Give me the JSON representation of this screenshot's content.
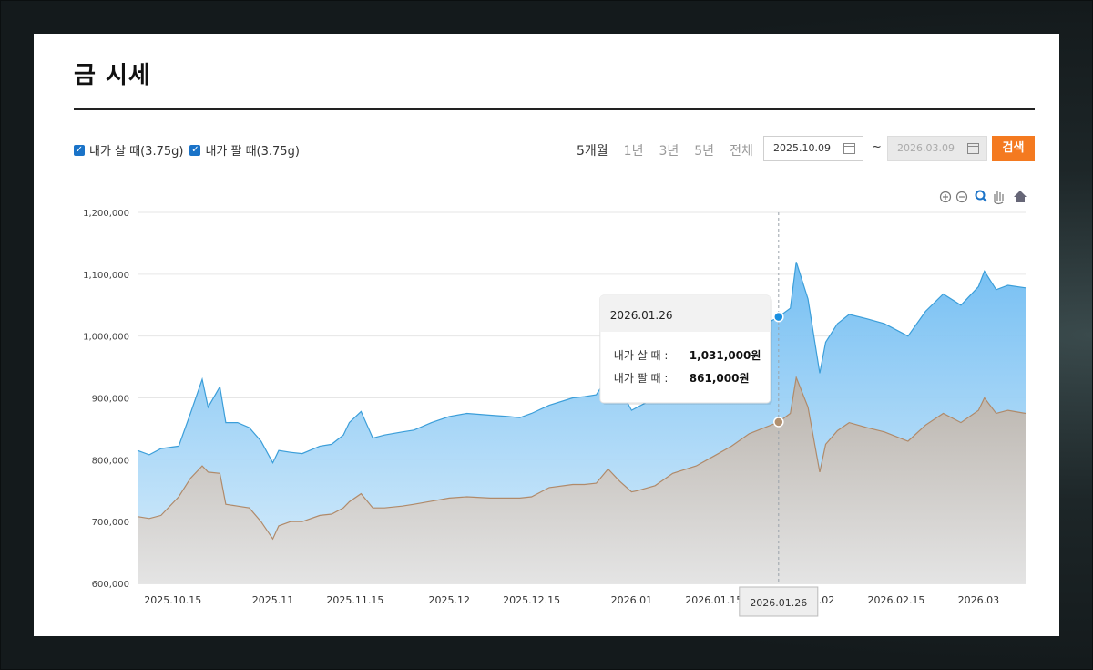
{
  "page": {
    "title": "금 시세",
    "checkbox_buy": "내가 살 때(3.75g)",
    "checkbox_sell": "내가 팔 때(3.75g)",
    "periods": [
      "5개월",
      "1년",
      "3년",
      "5년",
      "전체"
    ],
    "active_period": "5개월",
    "date_from": "2025.10.09",
    "date_tilde": "~",
    "date_to": "2026.03.09",
    "search_label": "검색",
    "accent_color": "#f47a20"
  },
  "chart_data": {
    "type": "area",
    "x_ticks": [
      "2025.10.15",
      "2025.11",
      "2025.11.15",
      "2025.12",
      "2025.12.15",
      "2026.01",
      "2026.01.15",
      "2026.02",
      "2026.02.15",
      "2026.03"
    ],
    "y_ticks": [
      "600,000",
      "700,000",
      "800,000",
      "900,000",
      "1,000,000",
      "1,100,000",
      "1,200,000"
    ],
    "ylim": [
      600000,
      1200000
    ],
    "xlim": [
      "2025.10.09",
      "2026.03.09"
    ],
    "series": [
      {
        "color": "#3b9ed9",
        "x": [
          "2025.10.09",
          "2025.10.11",
          "2025.10.13",
          "2025.10.16",
          "2025.10.18",
          "2025.10.20",
          "2025.10.21",
          "2025.10.23",
          "2025.10.24",
          "2025.10.26",
          "2025.10.28",
          "2025.10.30",
          "2025.11.01",
          "2025.11.02",
          "2025.11.04",
          "2025.11.06",
          "2025.11.09",
          "2025.11.11",
          "2025.11.13",
          "2025.11.14",
          "2025.11.16",
          "2025.11.18",
          "2025.11.20",
          "2025.11.23",
          "2025.11.25",
          "2025.11.28",
          "2025.12.01",
          "2025.12.04",
          "2025.12.08",
          "2025.12.11",
          "2025.12.13",
          "2025.12.15",
          "2025.12.18",
          "2025.12.22",
          "2025.12.24",
          "2025.12.26",
          "2025.12.28",
          "2025.12.30",
          "2026.01.01",
          "2026.01.02",
          "2026.01.05",
          "2026.01.08",
          "2026.01.12",
          "2026.01.15",
          "2026.01.18",
          "2026.01.21",
          "2026.01.26",
          "2026.01.28",
          "2026.01.29",
          "2026.01.31",
          "2026.02.02",
          "2026.02.03",
          "2026.02.05",
          "2026.02.07",
          "2026.02.10",
          "2026.02.13",
          "2026.02.17",
          "2026.02.20",
          "2026.02.23",
          "2026.02.26",
          "2026.03.01",
          "2026.03.02",
          "2026.03.04",
          "2026.03.06",
          "2026.03.09"
        ],
        "values": [
          815000,
          808000,
          818000,
          822000,
          875000,
          930000,
          885000,
          918000,
          860000,
          860000,
          852000,
          830000,
          795000,
          815000,
          812000,
          810000,
          822000,
          825000,
          840000,
          860000,
          878000,
          835000,
          840000,
          845000,
          848000,
          860000,
          870000,
          875000,
          872000,
          870000,
          868000,
          875000,
          888000,
          900000,
          902000,
          905000,
          935000,
          915000,
          880000,
          885000,
          900000,
          930000,
          945000,
          960000,
          985000,
          1005000,
          1031000,
          1045000,
          1120000,
          1060000,
          940000,
          990000,
          1020000,
          1035000,
          1028000,
          1020000,
          1000000,
          1040000,
          1068000,
          1050000,
          1080000,
          1105000,
          1075000,
          1082000,
          1078000
        ]
      },
      {
        "color": "#b08a6a",
        "x": [
          "2025.10.09",
          "2025.10.11",
          "2025.10.13",
          "2025.10.16",
          "2025.10.18",
          "2025.10.20",
          "2025.10.21",
          "2025.10.23",
          "2025.10.24",
          "2025.10.26",
          "2025.10.28",
          "2025.10.30",
          "2025.11.01",
          "2025.11.02",
          "2025.11.04",
          "2025.11.06",
          "2025.11.09",
          "2025.11.11",
          "2025.11.13",
          "2025.11.14",
          "2025.11.16",
          "2025.11.18",
          "2025.11.20",
          "2025.11.23",
          "2025.11.25",
          "2025.11.28",
          "2025.12.01",
          "2025.12.04",
          "2025.12.08",
          "2025.12.11",
          "2025.12.13",
          "2025.12.15",
          "2025.12.18",
          "2025.12.22",
          "2025.12.24",
          "2025.12.26",
          "2025.12.28",
          "2025.12.30",
          "2026.01.01",
          "2026.01.02",
          "2026.01.05",
          "2026.01.08",
          "2026.01.12",
          "2026.01.15",
          "2026.01.18",
          "2026.01.21",
          "2026.01.26",
          "2026.01.28",
          "2026.01.29",
          "2026.01.31",
          "2026.02.02",
          "2026.02.03",
          "2026.02.05",
          "2026.02.07",
          "2026.02.10",
          "2026.02.13",
          "2026.02.17",
          "2026.02.20",
          "2026.02.23",
          "2026.02.26",
          "2026.03.01",
          "2026.03.02",
          "2026.03.04",
          "2026.03.06",
          "2026.03.09"
        ],
        "values": [
          708000,
          705000,
          710000,
          740000,
          770000,
          790000,
          780000,
          778000,
          728000,
          725000,
          722000,
          700000,
          672000,
          693000,
          700000,
          700000,
          710000,
          712000,
          722000,
          732000,
          745000,
          722000,
          722000,
          725000,
          728000,
          733000,
          738000,
          740000,
          738000,
          738000,
          738000,
          740000,
          755000,
          760000,
          760000,
          762000,
          785000,
          765000,
          748000,
          750000,
          758000,
          778000,
          790000,
          806000,
          822000,
          842000,
          861000,
          875000,
          933000,
          885000,
          780000,
          825000,
          847000,
          860000,
          852000,
          845000,
          830000,
          856000,
          875000,
          860000,
          880000,
          900000,
          875000,
          880000,
          875000
        ]
      }
    ],
    "tooltip": {
      "date": "2026.01.26",
      "rows": [
        [
          "내가 살 때 :",
          "1,031,000원"
        ],
        [
          "내가 팔 때 :",
          "861,000원"
        ]
      ]
    },
    "crosshair_label": "2026.01.26"
  }
}
